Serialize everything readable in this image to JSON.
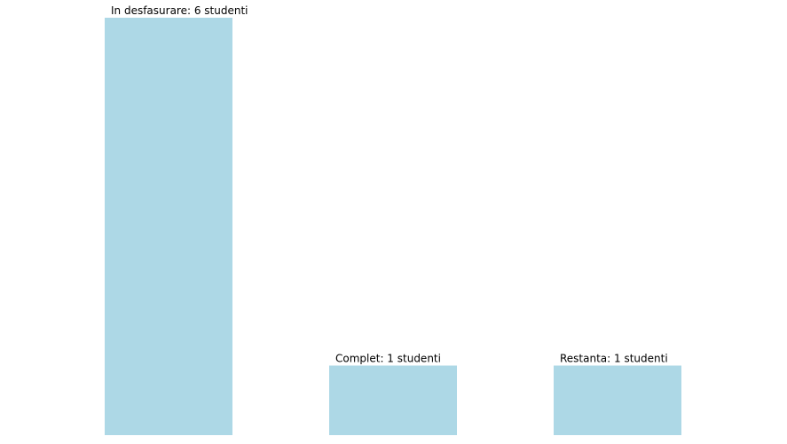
{
  "chart_data": {
    "type": "bar",
    "categories": [
      "In desfasurare",
      "Complet",
      "Restanta"
    ],
    "values": [
      6,
      1,
      1
    ],
    "labels": [
      "In desfasurare: 6 studenti",
      "Complet: 1 studenti",
      "Restanta: 1 studenti"
    ],
    "title": "",
    "xlabel": "",
    "ylabel": "",
    "ylim": [
      0,
      6
    ],
    "grid": false,
    "legend": "none",
    "bar_color": "#add8e6"
  }
}
